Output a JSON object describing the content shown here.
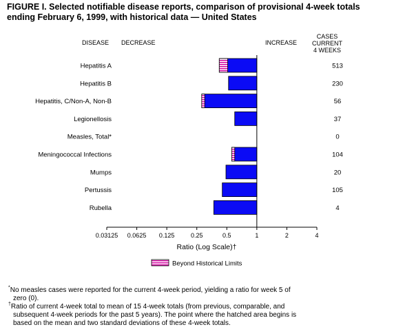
{
  "figure": {
    "title_line1": "FIGURE I. Selected notifiable disease reports, comparison of provisional 4-week totals",
    "title_line2": "ending February 6, 1999, with historical data — United States",
    "col_disease": "DISEASE",
    "col_decrease": "DECREASE",
    "col_increase": "INCREASE",
    "col_cases_line1": "CASES CURRENT",
    "col_cases_line2": "4 WEEKS",
    "legend_label": "Beyond Historical Limits",
    "footnote1_mark": "*",
    "footnote1_text_line1": "No measles cases were reported for the current 4-week period, yielding a ratio for week 5 of",
    "footnote1_text_line2": "zero (0).",
    "footnote2_mark": "†",
    "footnote2_text_line1": "Ratio of current 4-week total to mean of 15 4-week totals (from previous, comparable, and",
    "footnote2_text_line2": "subsequent 4-week periods for the past 5 years). The point where the hatched area begins is",
    "footnote2_text_line3": "based on the mean and two standard deviations of these 4-week totals."
  },
  "chart_data": {
    "type": "bar",
    "orientation": "horizontal",
    "scale": "log2",
    "reference_line": 1,
    "xlabel": "Ratio (Log Scale)†",
    "xlim": [
      0.03125,
      4
    ],
    "xticks": [
      "0.03125",
      "0.0625",
      "0.125",
      "0.25",
      "0.5",
      "1",
      "2",
      "4"
    ],
    "colors": {
      "bar": "#0b0bf5",
      "hatch": "#d400a0",
      "bar_edge": "#000000"
    },
    "categories": [
      "Hepatitis A",
      "Hepatitis B",
      "Hepatitis, C/Non-A, Non-B",
      "Legionellosis",
      "Measles, Total*",
      "Meningococcal Infections",
      "Mumps",
      "Pertussis",
      "Rubella"
    ],
    "ratios": [
      0.42,
      0.52,
      0.28,
      0.6,
      null,
      0.56,
      0.49,
      0.45,
      0.37
    ],
    "beyond_limits_from": [
      0.51,
      null,
      0.3,
      null,
      null,
      0.6,
      null,
      null,
      null
    ],
    "cases": [
      "513",
      "230",
      "56",
      "37",
      "0",
      "104",
      "20",
      "105",
      "4"
    ]
  }
}
